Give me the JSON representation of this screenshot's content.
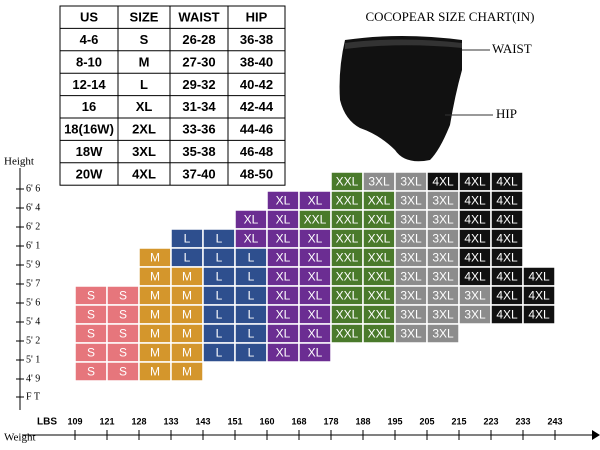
{
  "table": {
    "header": [
      "US",
      "SIZE",
      "WAIST",
      "HIP"
    ],
    "rows": [
      [
        "4-6",
        "S",
        "26-28",
        "36-38"
      ],
      [
        "8-10",
        "M",
        "27-30",
        "38-40"
      ],
      [
        "12-14",
        "L",
        "29-32",
        "40-42"
      ],
      [
        "16",
        "XL",
        "31-34",
        "42-44"
      ],
      [
        "18(16W)",
        "2XL",
        "33-36",
        "44-46"
      ],
      [
        "18W",
        "3XL",
        "35-38",
        "46-48"
      ],
      [
        "20W",
        "4XL",
        "37-40",
        "48-50"
      ]
    ]
  },
  "title": "COCOPEAR SIZE CHART(IN)",
  "waist_label": "WAIST",
  "hip_label": "HIP",
  "grid": {
    "y_label": "Height",
    "y_unit": "F T",
    "x_unit": "LBS",
    "x_label": "Weight",
    "weights": [
      109,
      121,
      128,
      133,
      143,
      151,
      160,
      168,
      178,
      188,
      195,
      205,
      215,
      223,
      233,
      243
    ],
    "colors": {
      "S": "#e6767c",
      "M": "#d4962c",
      "L": "#2e4f8e",
      "XL": "#6b2d92",
      "XXL": "#4a7a2b",
      "3XL": "#8c8c8c",
      "4XL": "#111111"
    },
    "rows": [
      {
        "height": "6' 6",
        "cells": [
          null,
          null,
          null,
          null,
          null,
          null,
          null,
          null,
          "XXL",
          "3XL",
          "3XL",
          "4XL",
          "4XL",
          "4XL",
          null
        ]
      },
      {
        "height": "6' 4",
        "cells": [
          null,
          null,
          null,
          null,
          null,
          null,
          "XL",
          "XL",
          "XXL",
          "XXL",
          "3XL",
          "3XL",
          "4XL",
          "4XL",
          null
        ]
      },
      {
        "height": "6' 2",
        "cells": [
          null,
          null,
          null,
          null,
          null,
          "XL",
          "XL",
          "XXL",
          "XXL",
          "XXL",
          "3XL",
          "3XL",
          "4XL",
          "4XL",
          null
        ]
      },
      {
        "height": "6' 1",
        "cells": [
          null,
          null,
          null,
          "L",
          "L",
          "XL",
          "XL",
          "XL",
          "XXL",
          "XXL",
          "3XL",
          "3XL",
          "4XL",
          "4XL",
          null
        ]
      },
      {
        "height": "5' 9",
        "cells": [
          null,
          null,
          "M",
          "L",
          "L",
          "L",
          "XL",
          "XL",
          "XXL",
          "XXL",
          "3XL",
          "3XL",
          "4XL",
          "4XL",
          null
        ]
      },
      {
        "height": "5' 7",
        "cells": [
          null,
          null,
          "M",
          "M",
          "L",
          "L",
          "XL",
          "XL",
          "XXL",
          "XXL",
          "3XL",
          "3XL",
          "4XL",
          "4XL",
          "4XL"
        ]
      },
      {
        "height": "5' 6",
        "cells": [
          "S",
          "S",
          "M",
          "M",
          "L",
          "L",
          "XL",
          "XL",
          "XXL",
          "XXL",
          "3XL",
          "3XL",
          "3XL",
          "4XL",
          "4XL"
        ]
      },
      {
        "height": "5' 4",
        "cells": [
          "S",
          "S",
          "M",
          "M",
          "L",
          "L",
          "XL",
          "XL",
          "XXL",
          "XXL",
          "3XL",
          "3XL",
          "3XL",
          "4XL",
          "4XL"
        ]
      },
      {
        "height": "5' 2",
        "cells": [
          "S",
          "S",
          "M",
          "M",
          "L",
          "L",
          "XL",
          "XL",
          "XXL",
          "XXL",
          "3XL",
          "3XL",
          null,
          null,
          null
        ]
      },
      {
        "height": "5' 1",
        "cells": [
          "S",
          "S",
          "M",
          "M",
          "L",
          "L",
          "XL",
          "XL",
          null,
          null,
          null,
          null,
          null,
          null,
          null
        ]
      },
      {
        "height": "4' 9",
        "cells": [
          "S",
          "S",
          "M",
          "M",
          null,
          null,
          null,
          null,
          null,
          null,
          null,
          null,
          null,
          null,
          null
        ]
      }
    ]
  }
}
